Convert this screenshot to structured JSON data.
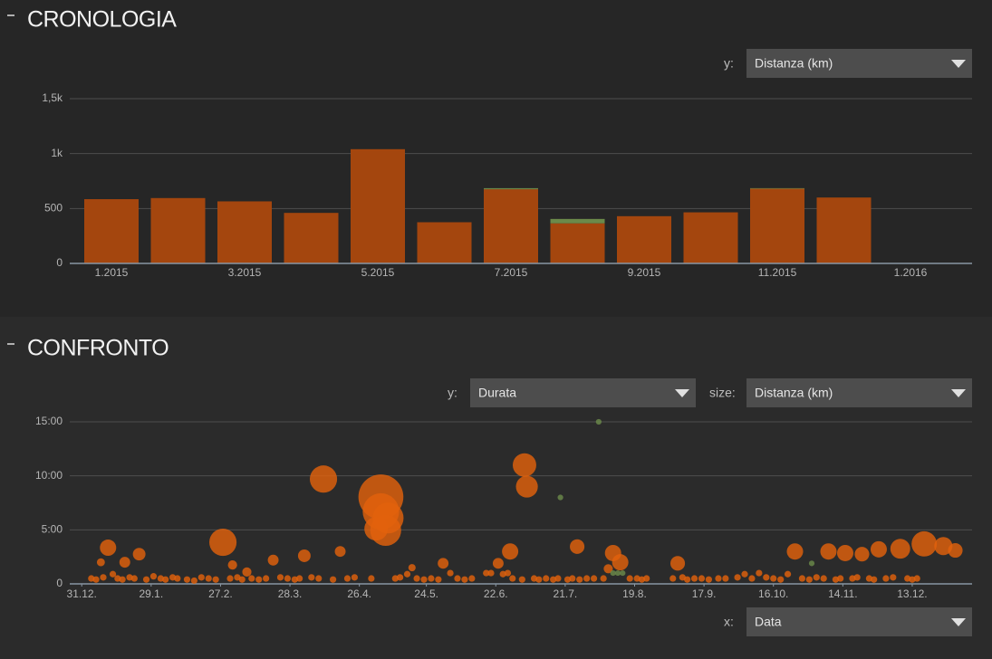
{
  "sections": [
    "CRONOLOGIA",
    "CONFRONTO"
  ],
  "controls": {
    "timeline_y": {
      "label": "y:",
      "value": "Distanza (km)"
    },
    "compare_y": {
      "label": "y:",
      "value": "Durata"
    },
    "compare_size": {
      "label": "size:",
      "value": "Distanza (km)"
    },
    "compare_x": {
      "label": "x:",
      "value": "Data"
    }
  },
  "chart_data": [
    {
      "type": "bar",
      "stacked": true,
      "categories": [
        "1.2015",
        null,
        "3.2015",
        null,
        "5.2015",
        null,
        "7.2015",
        null,
        "9.2015",
        null,
        "11.2015",
        null,
        "1.2016"
      ],
      "series": [
        {
          "color": "#a4460e",
          "values": [
            585,
            595,
            565,
            460,
            1040,
            375,
            675,
            365,
            430,
            465,
            680,
            600,
            null
          ]
        },
        {
          "color": "#6b8a4a",
          "values": [
            0,
            0,
            0,
            0,
            0,
            0,
            10,
            40,
            0,
            0,
            5,
            0,
            null
          ]
        }
      ],
      "ylim": [
        0,
        1500
      ],
      "yticks": [
        0,
        500,
        {
          "value": 1000,
          "label": "1k"
        },
        {
          "value": 1500,
          "label": "1,5k"
        }
      ],
      "grid": true
    },
    {
      "type": "scatter",
      "xlim": [
        -5,
        372
      ],
      "xticks": [
        {
          "value": 0,
          "label": "31.12."
        },
        {
          "value": 29,
          "label": "29.1."
        },
        {
          "value": 58,
          "label": "27.2."
        },
        {
          "value": 87,
          "label": "28.3."
        },
        {
          "value": 116,
          "label": "26.4."
        },
        {
          "value": 144,
          "label": "24.5."
        },
        {
          "value": 173,
          "label": "22.6."
        },
        {
          "value": 202,
          "label": "21.7."
        },
        {
          "value": 231,
          "label": "19.8."
        },
        {
          "value": 260,
          "label": "17.9."
        },
        {
          "value": 289,
          "label": "16.10."
        },
        {
          "value": 318,
          "label": "14.11."
        },
        {
          "value": 347,
          "label": "13.12."
        }
      ],
      "ylim": [
        0,
        15
      ],
      "yticks": [
        0,
        {
          "value": 5,
          "label": "5:00"
        },
        {
          "value": 10,
          "label": "10:00"
        },
        {
          "value": 15,
          "label": "15:00"
        }
      ],
      "grid": true,
      "series": [
        {
          "color": "#e2610c",
          "x": [
            8,
            11,
            18,
            24,
            59,
            63,
            69,
            80,
            93,
            101,
            108,
            125,
            125,
            128,
            123,
            127,
            138,
            151,
            174,
            179,
            185,
            186,
            207,
            222,
            225,
            220,
            249,
            298,
            312,
            319,
            326,
            333,
            342,
            352,
            360,
            365,
            4,
            6,
            9,
            13,
            15,
            17,
            20,
            22,
            27,
            30,
            33,
            35,
            38,
            40,
            44,
            47,
            50,
            53,
            56,
            62,
            65,
            67,
            71,
            74,
            77,
            83,
            86,
            89,
            91,
            96,
            99,
            105,
            111,
            114,
            121,
            131,
            133,
            136,
            140,
            143,
            146,
            149,
            154,
            157,
            160,
            163,
            169,
            171,
            176,
            178,
            180,
            184,
            189,
            191,
            194,
            197,
            199,
            203,
            205,
            208,
            211,
            214,
            218,
            229,
            232,
            234,
            236,
            247,
            251,
            253,
            256,
            259,
            262,
            266,
            269,
            274,
            277,
            280,
            283,
            286,
            289,
            292,
            295,
            301,
            304,
            307,
            310,
            315,
            317,
            322,
            324,
            329,
            331,
            336,
            339,
            345,
            347,
            349
          ],
          "values": [
            2.0,
            3.35,
            2.0,
            2.75,
            3.85,
            1.75,
            1.1,
            2.2,
            2.6,
            9.7,
            3.0,
            8.05,
            6.7,
            6.1,
            5.1,
            4.95,
            1.5,
            1.9,
            1.9,
            3.0,
            11.0,
            9.0,
            3.45,
            2.85,
            2.0,
            1.4,
            1.9,
            3.0,
            3.0,
            2.85,
            2.75,
            3.2,
            3.25,
            3.7,
            3.5,
            3.1,
            0.5,
            0.4,
            0.6,
            0.9,
            0.5,
            0.4,
            0.6,
            0.5,
            0.4,
            0.7,
            0.5,
            0.4,
            0.6,
            0.5,
            0.4,
            0.3,
            0.6,
            0.5,
            0.4,
            0.5,
            0.6,
            0.4,
            0.5,
            0.4,
            0.5,
            0.6,
            0.5,
            0.4,
            0.5,
            0.6,
            0.5,
            0.4,
            0.5,
            0.6,
            0.5,
            0.5,
            0.6,
            0.9,
            0.5,
            0.4,
            0.5,
            0.4,
            1.0,
            0.5,
            0.4,
            0.5,
            1.0,
            1.0,
            0.9,
            1.0,
            0.5,
            0.4,
            0.5,
            0.4,
            0.5,
            0.4,
            0.5,
            0.4,
            0.5,
            0.4,
            0.5,
            0.5,
            0.5,
            0.5,
            0.5,
            0.4,
            0.5,
            0.5,
            0.6,
            0.4,
            0.5,
            0.5,
            0.4,
            0.5,
            0.5,
            0.6,
            0.9,
            0.5,
            1.0,
            0.6,
            0.5,
            0.4,
            0.9,
            0.5,
            0.4,
            0.6,
            0.5,
            0.4,
            0.5,
            0.5,
            0.6,
            0.5,
            0.4,
            0.5,
            0.6,
            0.5,
            0.4,
            0.5
          ],
          "sizes": [
            6,
            25,
            11,
            15,
            70,
            8,
            8,
            11,
            15,
            70,
            11,
            190,
            125,
            90,
            52,
            90,
            5,
            11,
            11,
            25,
            52,
            45,
            20,
            25,
            25,
            8,
            20,
            25,
            25,
            25,
            20,
            25,
            37,
            60,
            31,
            20,
            4,
            4,
            4,
            4,
            4,
            4,
            4,
            4,
            4,
            4,
            4,
            4,
            4,
            4,
            4,
            4,
            4,
            4,
            4,
            4,
            4,
            4,
            4,
            4,
            4,
            4,
            4,
            4,
            4,
            4,
            4,
            4,
            4,
            4,
            4,
            4,
            4,
            4,
            4,
            4,
            4,
            4,
            4,
            4,
            4,
            4,
            4,
            4,
            4,
            4,
            4,
            4,
            4,
            4,
            4,
            4,
            4,
            4,
            4,
            4,
            4,
            4,
            4,
            4,
            4,
            4,
            4,
            4,
            4,
            4,
            4,
            4,
            4,
            4,
            4,
            4,
            4,
            4,
            4,
            4,
            4,
            4,
            4,
            4,
            4,
            4,
            4,
            4,
            4,
            4,
            4,
            4,
            4,
            4,
            4,
            4,
            4,
            4
          ]
        },
        {
          "color": "#6b8a4a",
          "x": [
            216,
            200,
            305,
            222,
            224,
            226
          ],
          "values": [
            15.0,
            8.0,
            1.9,
            1.0,
            1.0,
            1.0
          ],
          "sizes": [
            3,
            3,
            3,
            3,
            3,
            3
          ]
        }
      ]
    }
  ]
}
